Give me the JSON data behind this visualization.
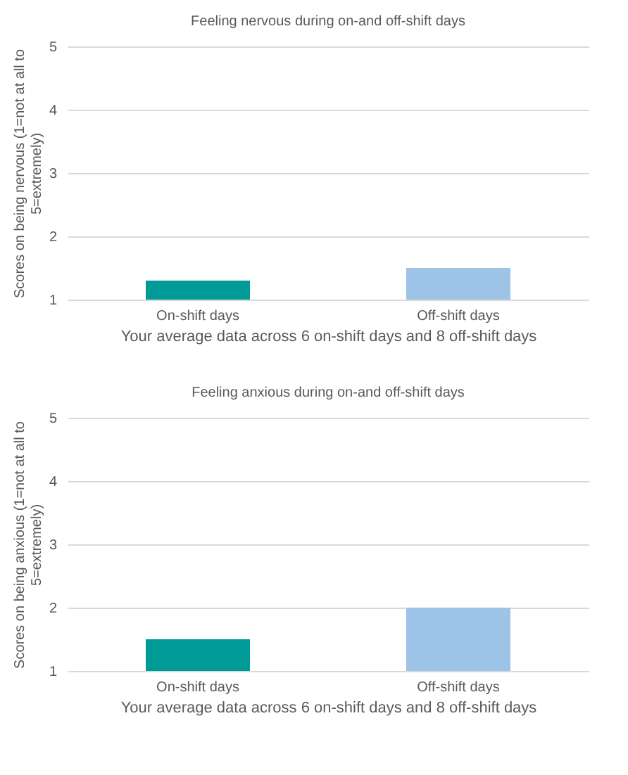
{
  "chart_data": [
    {
      "type": "bar",
      "title": "Feeling nervous during on-and off-shift days",
      "xlabel": "Your average data across 6 on-shift days and 8 off-shift days",
      "ylabel": "Scores on being nervous (1=not at all to 5=extremely)",
      "categories": [
        "On-shift days",
        "Off-shift days"
      ],
      "values": [
        1.3,
        1.5
      ],
      "colors": [
        "#009a97",
        "#9dc3e6"
      ],
      "ylim": [
        1,
        5
      ],
      "yticks": [
        1,
        2,
        3,
        4,
        5
      ],
      "grid": "y"
    },
    {
      "type": "bar",
      "title": "Feeling anxious during on-and off-shift days",
      "xlabel": "Your average data across 6 on-shift days and 8 off-shift days",
      "ylabel": "Scores on being anxious (1=not at all to 5=extremely)",
      "categories": [
        "On-shift days",
        "Off-shift days"
      ],
      "values": [
        1.5,
        2
      ],
      "colors": [
        "#009a97",
        "#9dc3e6"
      ],
      "ylim": [
        1,
        5
      ],
      "yticks": [
        1,
        2,
        3,
        4,
        5
      ],
      "grid": "y"
    }
  ]
}
